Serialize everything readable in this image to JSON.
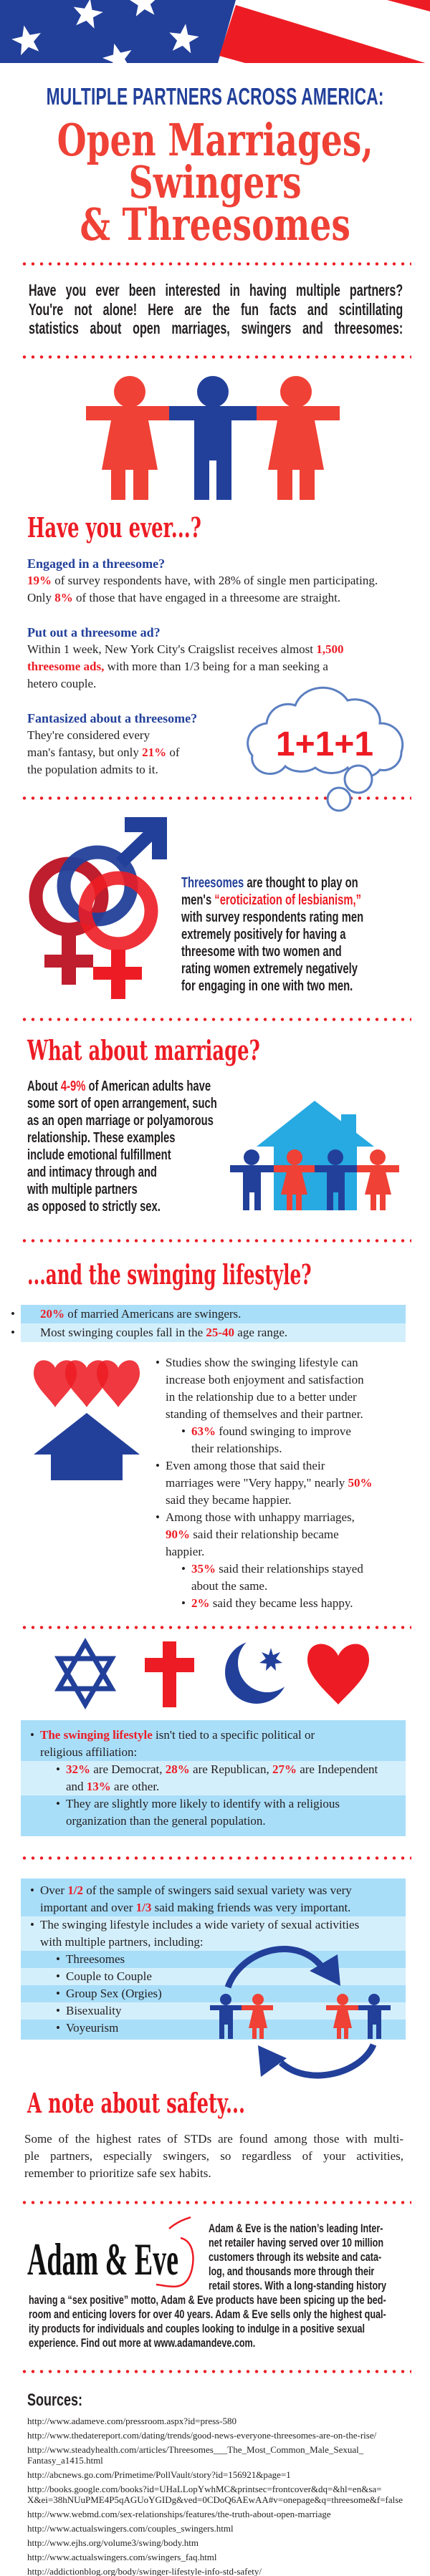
{
  "colors": {
    "blue": "#22409a",
    "red": "#ed1c24",
    "title_red": "#ef4136",
    "house_blue": "#27a9e1",
    "band_dark": "#a9def9",
    "band_light": "#d4effc"
  },
  "header": {
    "subtitle": "MULTIPLE PARTNERS ACROSS AMERICA:",
    "title_lines": [
      "Open Marriages,",
      "Swingers",
      "& Threesomes"
    ]
  },
  "intro": "Have you ever been interested in having multiple partners?\nYou're not alone! Here are the fun facts and scintillating\nstatistics about open marriages, swingers and threesomes:",
  "have_you_ever": {
    "heading": "Have you ever...?",
    "items": [
      {
        "q": "Engaged in a threesome?",
        "body": [
          [
            "19%",
            "r"
          ],
          [
            " of survey respondents have, with 28% of single men participating.\nOnly ",
            ""
          ],
          [
            "8%",
            "r"
          ],
          [
            " of those that have engaged in a threesome are straight.",
            ""
          ]
        ]
      },
      {
        "q": "Put out a threesome ad?",
        "body": [
          [
            "Within 1 week, New York City's Craigslist receives almost ",
            ""
          ],
          [
            "1,500\nthreesome ads,",
            "r"
          ],
          [
            " with more than 1/3 being for a man seeking a\nhetero couple.",
            ""
          ]
        ]
      },
      {
        "q": "Fantasized about a threesome?",
        "body": [
          [
            "They're considered every\nman's fantasy, but only ",
            ""
          ],
          [
            "21%",
            "r"
          ],
          [
            " of\nthe population admits to it.",
            ""
          ]
        ]
      }
    ],
    "cloud_text": "1+1+1"
  },
  "eroticization": [
    [
      "Threesomes",
      "b"
    ],
    [
      " are thought to play on\nmen's ",
      ""
    ],
    [
      "“eroticization of lesbianism,”",
      "r"
    ],
    [
      "\nwith survey respondents rating men\nextremely positively for having a\nthreesome with two women and\nrating women extremely negatively\nfor engaging in one with two men.",
      ""
    ]
  ],
  "marriage": {
    "heading": "What about marriage?",
    "body": [
      [
        "About ",
        ""
      ],
      [
        "4-9%",
        "r"
      ],
      [
        " of American adults have\nsome sort of open arrangement, such\nas an open marriage or polyamorous\nrelationship. These examples\ninclude emotional fulfillment\nand intimacy through and\nwith multiple partners\nas opposed to strictly sex.",
        ""
      ]
    ]
  },
  "swinging": {
    "heading": "...and the swinging lifestyle?",
    "band_items": [
      [
        [
          "20%",
          "r"
        ],
        [
          " of married Americans are swingers.",
          ""
        ]
      ],
      [
        [
          "Most swinging couples fall in the ",
          ""
        ],
        [
          "25-40",
          "r"
        ],
        [
          " age range.",
          ""
        ]
      ]
    ],
    "bullets": [
      {
        "level": 1,
        "segs": [
          [
            "Studies show the swinging lifestyle can\nincrease both enjoyment and satisfaction\nin the relationship due to a better under\nstanding of themselves and their partner.",
            ""
          ]
        ]
      },
      {
        "level": 2,
        "segs": [
          [
            "63%",
            "r"
          ],
          [
            " found swinging to improve\ntheir relationships.",
            ""
          ]
        ]
      },
      {
        "level": 1,
        "segs": [
          [
            "Even among those that said their\nmarriages were \"Very happy,\" nearly ",
            ""
          ],
          [
            "50%",
            "r"
          ],
          [
            "\nsaid they became happier.",
            ""
          ]
        ]
      },
      {
        "level": 1,
        "segs": [
          [
            "Among those with unhappy marriages,\n",
            ""
          ],
          [
            "90%",
            "r"
          ],
          [
            " said their relationship became\nhappier.",
            ""
          ]
        ]
      },
      {
        "level": 2,
        "segs": [
          [
            "35%",
            "r"
          ],
          [
            " said their relationships stayed\nabout the same.",
            ""
          ]
        ]
      },
      {
        "level": 2,
        "segs": [
          [
            "2%",
            "r"
          ],
          [
            " said they became less happy.",
            ""
          ]
        ]
      }
    ]
  },
  "religion": {
    "icons": [
      "star-of-david-icon",
      "cross-icon",
      "crescent-star-icon",
      "heart-icon"
    ],
    "items": [
      {
        "level": 1,
        "band": "dark",
        "segs": [
          [
            "The swinging lifestyle",
            "r"
          ],
          [
            " isn't tied to a specific political or\nreligious affiliation:",
            ""
          ]
        ]
      },
      {
        "level": 2,
        "band": "light",
        "segs": [
          [
            "32%",
            "r"
          ],
          [
            " are Democrat, ",
            ""
          ],
          [
            "28%",
            "r"
          ],
          [
            " are Republican, ",
            ""
          ],
          [
            "27%",
            "r"
          ],
          [
            " are Independent\nand ",
            ""
          ],
          [
            "13%",
            "r"
          ],
          [
            " are other.",
            ""
          ]
        ]
      },
      {
        "level": 2,
        "band": "dark",
        "segs": [
          [
            "They are slightly more likely to identify with a religious\norganization than the general population.",
            ""
          ]
        ]
      }
    ]
  },
  "variety": {
    "items": [
      {
        "level": 1,
        "band": "dark",
        "segs": [
          [
            "Over ",
            ""
          ],
          [
            "1/2",
            "r"
          ],
          [
            " of the sample of swingers said sexual variety was very\nimportant and over ",
            ""
          ],
          [
            "1/3",
            "r"
          ],
          [
            " said making friends was very important.",
            ""
          ]
        ]
      },
      {
        "level": 1,
        "band": "light",
        "segs": [
          [
            "The swinging lifestyle includes a wide variety of sexual activities\nwith multiple partners, including:",
            ""
          ]
        ]
      },
      {
        "level": 2,
        "band": "dark",
        "segs": [
          [
            "Threesomes",
            ""
          ]
        ]
      },
      {
        "level": 2,
        "band": "light",
        "segs": [
          [
            "Couple to Couple",
            ""
          ]
        ]
      },
      {
        "level": 2,
        "band": "dark",
        "segs": [
          [
            "Group Sex (Orgies)",
            ""
          ]
        ]
      },
      {
        "level": 2,
        "band": "light",
        "segs": [
          [
            "Bisexuality",
            ""
          ]
        ]
      },
      {
        "level": 2,
        "band": "dark",
        "segs": [
          [
            "Voyeurism",
            ""
          ]
        ]
      }
    ]
  },
  "safety": {
    "heading": "A note about safety...",
    "lines": [
      "Some of the highest rates of STDs are found among those with multi-",
      "ple partners, especially swingers, so regardless of your activities,",
      "remember to prioritize safe sex habits."
    ]
  },
  "adam_eve": {
    "logo": "Adam & Eve",
    "text_top": "Adam & Eve is the nation’s leading Inter-\nnet retailer having served over 10 million\ncustomers through its website and cata-\nlog, and thousands more through their\nretail stores. With a long-standing history",
    "text_bottom": "having a “sex positive” motto, Adam & Eve products have been spicing up the bed-\nroom and enticing lovers for over 40 years. Adam & Eve sells only the highest qual-\nity products for individuals and couples looking to indulge in a positive sexual\nexperience. Find out more at www.adamandeve.com."
  },
  "sources": {
    "heading": "Sources:",
    "urls": [
      "http://www.adameve.com/pressroom.aspx?id=press-580",
      "http://www.thedatereport.com/dating/trends/good-news-everyone-threesomes-are-on-the-rise/",
      "http://www.steadyhealth.com/articles/Threesomes___The_Most_Common_Male_Sexual_\nFantasy_a1415.html",
      "http://abcnews.go.com/Primetime/PollVault/story?id=156921&page=1",
      "http://books.google.com/books?id=UHaLLopYwhMC&printsec=frontcover&dq=&hl=en&sa=\nX&ei=38hNUuPME4P5qAGUoYGIDg&ved=0CDoQ6AEwAA#v=onepage&q=threesome&f=false",
      "http://www.webmd.com/sex-relationships/features/the-truth-about-open-marriage",
      "http://www.actualswingers.com/couples_swingers.html",
      "http://www.ejhs.org/volume3/swing/body.htm",
      "http://www.actualswingers.com/swingers_faq.html",
      "http://addictionblog.org/body/swinger-lifestyle-info-std-safety/"
    ]
  }
}
